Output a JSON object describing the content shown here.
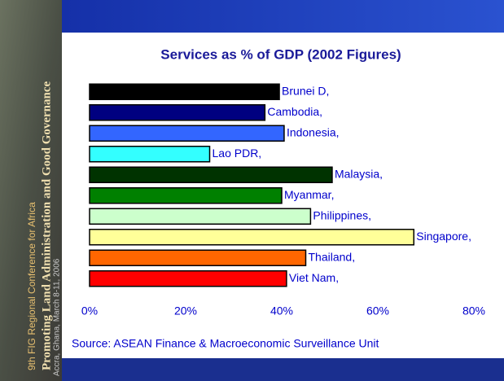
{
  "chart_data": {
    "type": "hbar",
    "title": "Services as % of GDP (2002 Figures)",
    "categories": [
      "Brunei D,",
      "Cambodia,",
      "Indonesia,",
      "Lao PDR,",
      "Malaysia,",
      "Myanmar,",
      "Philippines,",
      "Singapore,",
      "Thailand,",
      "Viet Nam,"
    ],
    "values": [
      39.5,
      36.5,
      40.5,
      25,
      50.5,
      40,
      46,
      67.5,
      45,
      41
    ],
    "colors": [
      "#000000",
      "#000080",
      "#3366ff",
      "#33ffff",
      "#003300",
      "#008000",
      "#ccffcc",
      "#ffff99",
      "#ff6600",
      "#ff0000"
    ],
    "xlim": [
      0,
      80
    ],
    "xticks": [
      {
        "value": 0,
        "label": "0%"
      },
      {
        "value": 20,
        "label": "20%"
      },
      {
        "value": 40,
        "label": "40%"
      },
      {
        "value": 60,
        "label": "60%"
      },
      {
        "value": 80,
        "label": "80%"
      }
    ],
    "grid": false,
    "source": "Source: ASEAN Finance & Macroeconomic Surveillance Unit"
  },
  "sidebar": {
    "conference": "9th FIG Regional Conference for Africa",
    "theme": "Promoting Land Administration and Good Governance",
    "place": "Accra, Ghana, March 8-11, 2006"
  }
}
